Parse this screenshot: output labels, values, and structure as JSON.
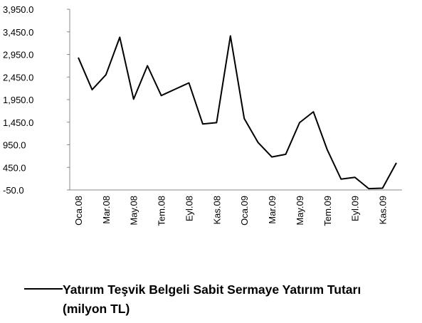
{
  "chart_data": {
    "type": "line",
    "categories": [
      "Oca.08",
      null,
      "Mar.08",
      null,
      "May.08",
      null,
      "Tem.08",
      null,
      "Eyl.08",
      null,
      "Kas.08",
      null,
      "Oca.09",
      null,
      "Mar.09",
      null,
      "May.09",
      null,
      "Tem.09",
      null,
      "Eyl.09",
      null,
      "Kas.09",
      null
    ],
    "series": [
      {
        "name": "Yatırım Teşvik Belgeli Sabit Sermaye Yatırım Tutarı (milyon TL)",
        "color": "#000000",
        "values": [
          2880,
          2170,
          2500,
          3330,
          1960,
          2700,
          2040,
          2180,
          2320,
          1410,
          1440,
          3360,
          1530,
          1000,
          680,
          740,
          1440,
          1680,
          840,
          190,
          230,
          -20,
          -10,
          550
        ]
      }
    ],
    "ylim": [
      -50,
      3950
    ],
    "yticks": [
      {
        "value": -50,
        "label": "-50.0"
      },
      {
        "value": 450,
        "label": "450.0"
      },
      {
        "value": 950,
        "label": "950.0"
      },
      {
        "value": 1450,
        "label": "1,450.0"
      },
      {
        "value": 1950,
        "label": "1,950.0"
      },
      {
        "value": 2450,
        "label": "2,450.0"
      },
      {
        "value": 2950,
        "label": "2,950.0"
      },
      {
        "value": 3450,
        "label": "3,450.0"
      },
      {
        "value": 3950,
        "label": "3,950.0"
      }
    ],
    "grid": false,
    "legend": "bottom"
  }
}
